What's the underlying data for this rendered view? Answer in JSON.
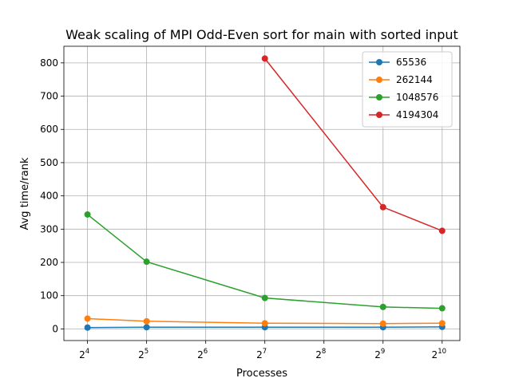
{
  "chart_data": {
    "type": "line",
    "title": "Weak scaling of MPI Odd-Even sort for main with sorted input",
    "xlabel": "Processes",
    "ylabel": "Avg time/rank",
    "xscale": "log2",
    "xlim_exp": [
      3.6,
      10.3
    ],
    "ylim": [
      -35,
      850
    ],
    "grid": true,
    "legend_position": "top-right",
    "xticks": [
      {
        "base": "2",
        "exp": "4",
        "value": 16
      },
      {
        "base": "2",
        "exp": "5",
        "value": 32
      },
      {
        "base": "2",
        "exp": "6",
        "value": 64
      },
      {
        "base": "2",
        "exp": "7",
        "value": 128
      },
      {
        "base": "2",
        "exp": "8",
        "value": 256
      },
      {
        "base": "2",
        "exp": "9",
        "value": 512
      },
      {
        "base": "2",
        "exp": "10",
        "value": 1024
      }
    ],
    "yticks": [
      "0",
      "100",
      "200",
      "300",
      "400",
      "500",
      "600",
      "700",
      "800"
    ],
    "series": [
      {
        "name": "65536",
        "color": "#1f77b4",
        "x": [
          16,
          32,
          128,
          512,
          1024
        ],
        "y": [
          4,
          5,
          5,
          5,
          6
        ]
      },
      {
        "name": "262144",
        "color": "#ff7f0e",
        "x": [
          16,
          32,
          128,
          512,
          1024
        ],
        "y": [
          31,
          23,
          17,
          16,
          17
        ]
      },
      {
        "name": "1048576",
        "color": "#2ca02c",
        "x": [
          16,
          32,
          128,
          512,
          1024
        ],
        "y": [
          344,
          202,
          93,
          66,
          62
        ]
      },
      {
        "name": "4194304",
        "color": "#d62728",
        "x": [
          128,
          512,
          1024
        ],
        "y": [
          813,
          366,
          295
        ]
      }
    ]
  }
}
